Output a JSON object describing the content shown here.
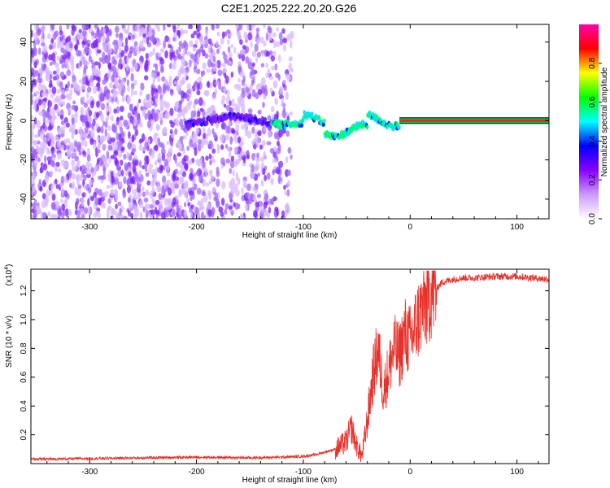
{
  "title": "C2E1.2025.222.20.20.G26",
  "chart_data": [
    {
      "type": "heatmap",
      "xlabel": "Height of straight line (km)",
      "ylabel": "Frequency (Hz)",
      "xlim": [
        -355,
        130
      ],
      "ylim": [
        -50,
        49
      ],
      "xticks": [
        -300,
        -200,
        -100,
        0,
        100
      ],
      "yticks": [
        -40,
        -20,
        0,
        20,
        40
      ],
      "colorbar": {
        "label": "Normalized spectral amplitude",
        "range": [
          0,
          1
        ],
        "ticks": [
          "0.0",
          "0.2",
          "0.4",
          "0.6",
          "0.8"
        ],
        "colors": [
          "#ffffff",
          "#cc99ff",
          "#8800ff",
          "#0000ff",
          "#00ffff",
          "#00ff00",
          "#ffff00",
          "#ff0000",
          "#ff00aa"
        ]
      },
      "features": {
        "noise_region_x": [
          -355,
          -110
        ],
        "line_center_hz": 0,
        "steady_line_x": [
          -10,
          130
        ]
      }
    },
    {
      "type": "line",
      "xlabel": "Height of straight line (km)",
      "ylabel": "SNR (10 * v/v)",
      "scale_note": "(x10",
      "scale_exp": "4",
      "xlim": [
        -355,
        130
      ],
      "ylim": [
        0,
        1.35
      ],
      "xticks": [
        -300,
        -200,
        -100,
        0,
        100
      ],
      "yticks": [
        "0.2",
        "0.4",
        "0.6",
        "0.8",
        "1.0",
        "1.2"
      ],
      "color": "#e8302a",
      "series": [
        {
          "x": [
            -355,
            -300,
            -250,
            -200,
            -150,
            -120,
            -100,
            -90,
            -80,
            -70,
            -60,
            -55,
            -50,
            -45,
            -40,
            -35,
            -30,
            -25,
            -20,
            -15,
            -10,
            -5,
            0,
            5,
            10,
            15,
            20,
            25,
            30,
            40,
            50,
            60,
            80,
            100,
            130
          ],
          "y": [
            0.03,
            0.035,
            0.04,
            0.045,
            0.04,
            0.045,
            0.05,
            0.06,
            0.08,
            0.1,
            0.15,
            0.25,
            0.12,
            0.05,
            0.3,
            0.6,
            0.8,
            0.5,
            0.65,
            0.8,
            0.75,
            0.9,
            0.85,
            0.95,
            1.05,
            1.12,
            1.2,
            1.22,
            1.26,
            1.28,
            1.29,
            1.29,
            1.3,
            1.3,
            1.28
          ]
        }
      ]
    }
  ]
}
